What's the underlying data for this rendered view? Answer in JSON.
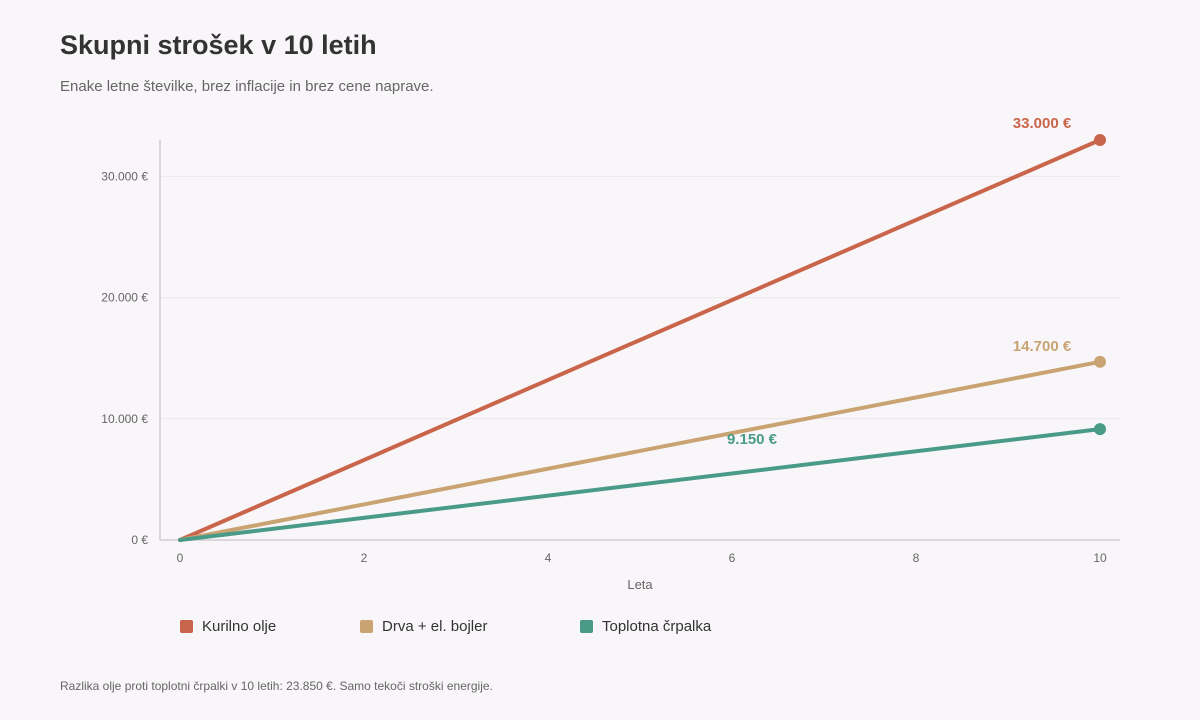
{
  "header": {
    "title": "Skupni strošek v 10 letih",
    "subtitle": "Enake letne številke, brez inflacije in brez cene naprave."
  },
  "chart_data": {
    "type": "line",
    "xlabel": "Leta",
    "ylabel": "",
    "xlim": [
      0,
      10
    ],
    "ylim": [
      0,
      33000
    ],
    "x_ticks": [
      0,
      2,
      4,
      6,
      8,
      10
    ],
    "y_ticks": [
      0,
      10000,
      20000,
      30000
    ],
    "y_tick_labels": [
      "0 €",
      "10.000 €",
      "20.000 €",
      "30.000 €"
    ],
    "grid": true,
    "legend_position": "bottom-left",
    "series": [
      {
        "name": "Kurilno olje",
        "color": "#c9654a",
        "x": [
          0,
          10
        ],
        "y": [
          0,
          33000
        ],
        "end_label": "33.000 €"
      },
      {
        "name": "Drva + el. bojler",
        "color": "#c9a472",
        "x": [
          0,
          10
        ],
        "y": [
          0,
          14700
        ],
        "end_label": "14.700 €"
      },
      {
        "name": "Toplotna črpalka",
        "color": "#4a9a88",
        "x": [
          0,
          10
        ],
        "y": [
          0,
          9150
        ],
        "end_label": "9.150 €"
      }
    ]
  },
  "footnote": "Razlika olje proti toplotni črpalki v 10 letih: 23.850 €. Samo tekoči stroški energije."
}
